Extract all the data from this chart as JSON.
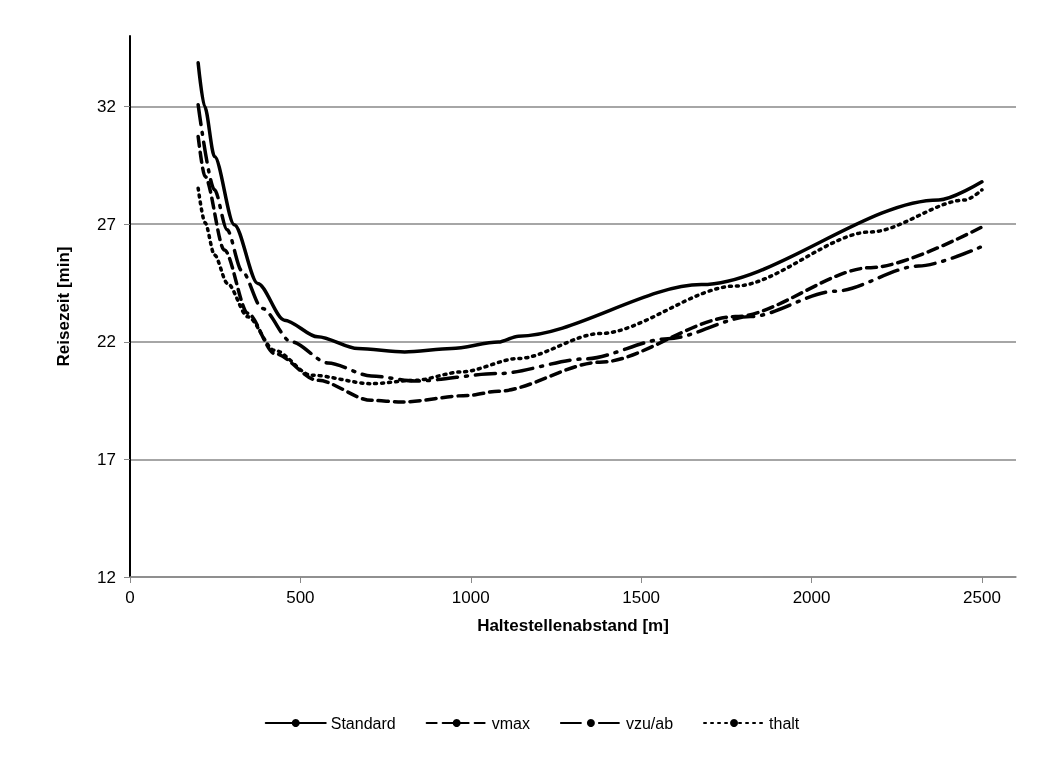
{
  "chart_data": {
    "type": "line",
    "xlabel": "Haltestellenabstand [m]",
    "ylabel": "Reisezeit [min]",
    "xlim": [
      0,
      2600
    ],
    "xticks": [
      0,
      500,
      1000,
      1500,
      2000,
      2500
    ],
    "ylim": [
      12,
      35
    ],
    "yticks": [
      12,
      17,
      22,
      27,
      32
    ],
    "grid": "y",
    "legend": "bottom",
    "marker": "none",
    "series": [
      {
        "name": "Standard",
        "color": "#000000",
        "line_style": "solid",
        "x": [
          200,
          219,
          248,
          306,
          375,
          453,
          551,
          669,
          806,
          944,
          1081,
          1140,
          1677,
          2373,
          2500
        ],
        "values": [
          33.86,
          32.0,
          29.88,
          26.98,
          24.48,
          22.92,
          22.21,
          21.71,
          21.57,
          21.71,
          21.99,
          22.24,
          24.43,
          28.03,
          28.8
        ]
      },
      {
        "name": "vmax",
        "color": "#000000",
        "line_style": "dashed",
        "x": [
          200,
          220,
          277,
          346,
          424,
          551,
          708,
          796,
          993,
          1081,
          1378,
          1776,
          2174,
          2500
        ],
        "values": [
          30.73,
          29.03,
          25.9,
          23.21,
          21.5,
          20.36,
          19.51,
          19.44,
          19.72,
          19.9,
          21.13,
          23.07,
          25.15,
          26.88
        ]
      },
      {
        "name": "vzu/ab",
        "color": "#000000",
        "line_style": "dashdot",
        "x": [
          200,
          248,
          285,
          328,
          388,
          473,
          581,
          708,
          836,
          1081,
          1334,
          1578,
          1821,
          2069,
          2314,
          2500
        ],
        "values": [
          32.08,
          28.46,
          26.76,
          25.02,
          23.42,
          22.0,
          21.1,
          20.55,
          20.33,
          20.65,
          21.27,
          22.13,
          23.07,
          24.15,
          25.22,
          26.05
        ]
      },
      {
        "name": "thalt",
        "color": "#000000",
        "line_style": "dotted",
        "x": [
          200,
          220,
          248,
          286,
          346,
          424,
          532,
          708,
          836,
          973,
          1140,
          1379,
          1776,
          2174,
          2451,
          2500
        ],
        "values": [
          28.53,
          27.07,
          25.69,
          24.48,
          23.06,
          21.64,
          20.58,
          20.22,
          20.36,
          20.72,
          21.29,
          22.35,
          24.37,
          26.67,
          28.03,
          28.46
        ]
      }
    ]
  }
}
